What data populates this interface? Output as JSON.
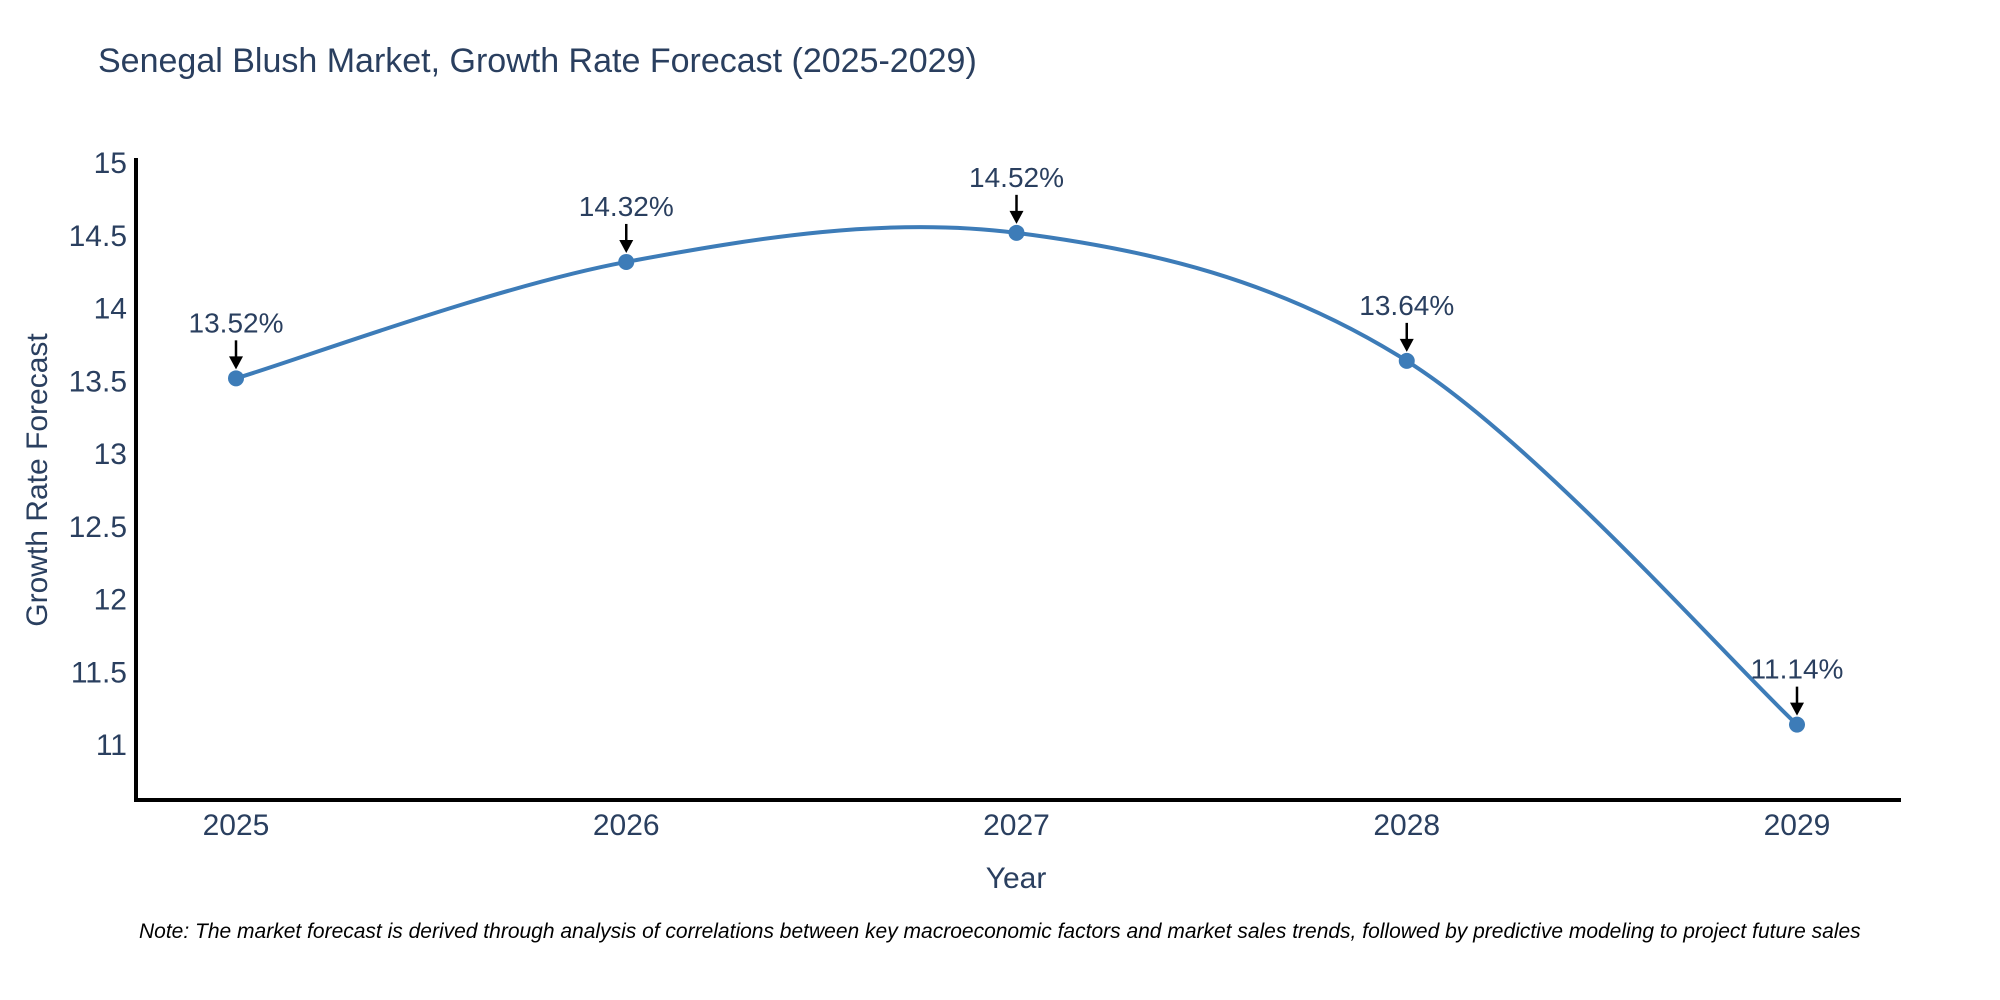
{
  "title": "Senegal Blush Market, Growth Rate Forecast (2025-2029)",
  "note": "Note: The market forecast is derived through analysis of correlations between key macroeconomic factors and market sales trends, followed by predictive modeling to project future sales",
  "chart_data": {
    "type": "line",
    "title": "Senegal Blush Market, Growth Rate Forecast (2025-2029)",
    "xlabel": "Year",
    "ylabel": "Growth Rate Forecast",
    "categories": [
      "2025",
      "2026",
      "2027",
      "2028",
      "2029"
    ],
    "values": [
      13.52,
      14.32,
      14.52,
      13.64,
      11.14
    ],
    "point_labels": [
      "13.52%",
      "14.32%",
      "14.52%",
      "13.64%",
      "11.14%"
    ],
    "y_ticks": [
      15,
      14.5,
      14,
      13.5,
      13,
      12.5,
      12,
      11.5,
      11
    ],
    "y_tick_labels": [
      "15",
      "14.5",
      "14",
      "13.5",
      "13",
      "12.5",
      "12",
      "11.5",
      "11"
    ],
    "ylim": [
      10.6,
      15.03
    ],
    "grid": false,
    "legend_position": "none",
    "line_shape": "spline",
    "colors": {
      "line": "#3d7cb8",
      "marker": "#3d7cb8",
      "axis_line": "#000000",
      "tick_text": "#2a3f5f",
      "annotation_text": "#2a3f5f",
      "annotation_arrow": "#000000",
      "title_text": "#2a3f5f",
      "background": "#ffffff"
    }
  }
}
